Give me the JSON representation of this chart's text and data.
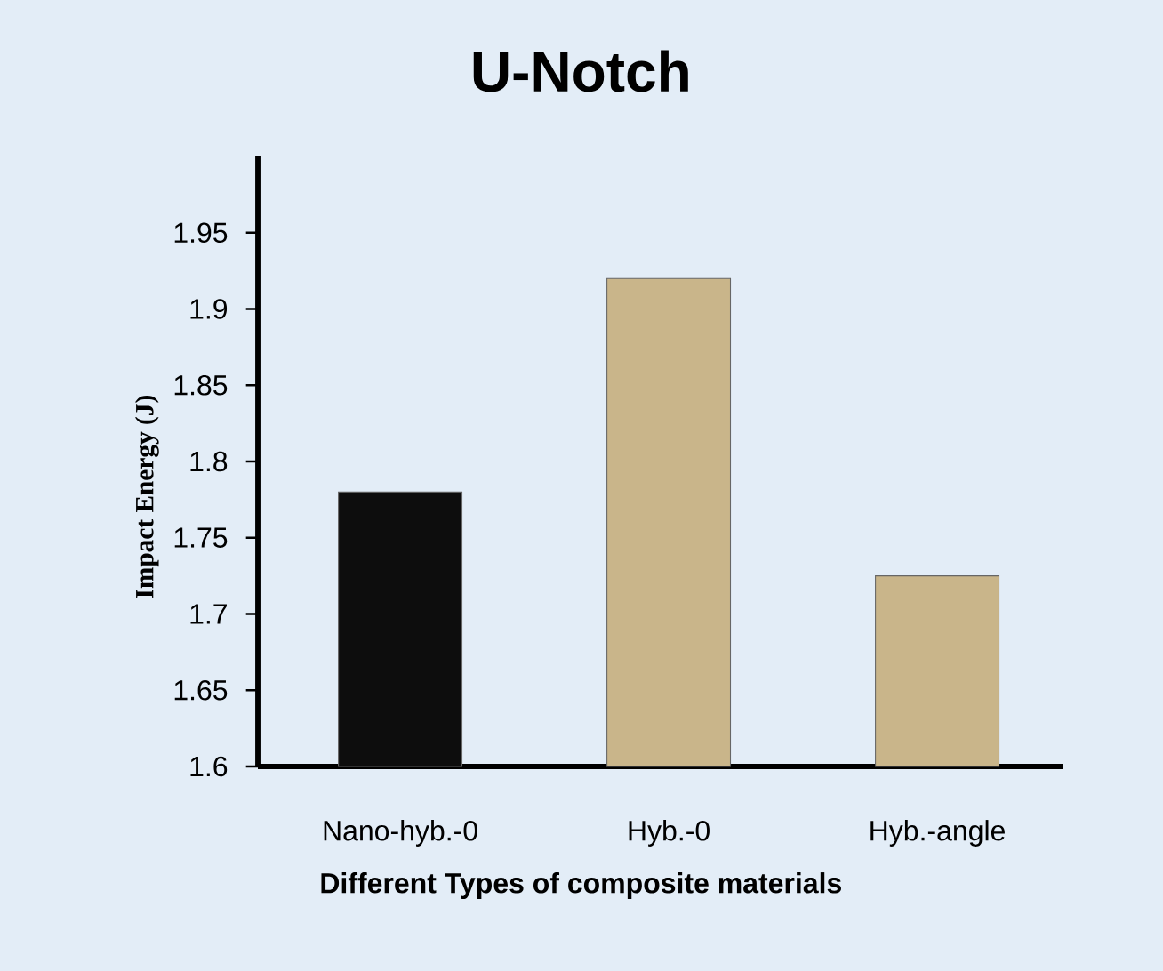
{
  "chart_data": {
    "type": "bar",
    "title": "U-Notch",
    "xlabel": "Different Types of composite materials",
    "ylabel": "Impact Energy (J)",
    "categories": [
      "Nano-hyb.-0",
      "Hyb.-0",
      "Hyb.-angle"
    ],
    "values": [
      1.78,
      1.92,
      1.725
    ],
    "colors": [
      "#0d0d0d",
      "#c9b58a",
      "#c9b58a"
    ],
    "ylim": [
      1.6,
      2.0
    ],
    "yticks": [
      1.6,
      1.65,
      1.7,
      1.75,
      1.8,
      1.85,
      1.9,
      1.95
    ],
    "grid": false
  }
}
